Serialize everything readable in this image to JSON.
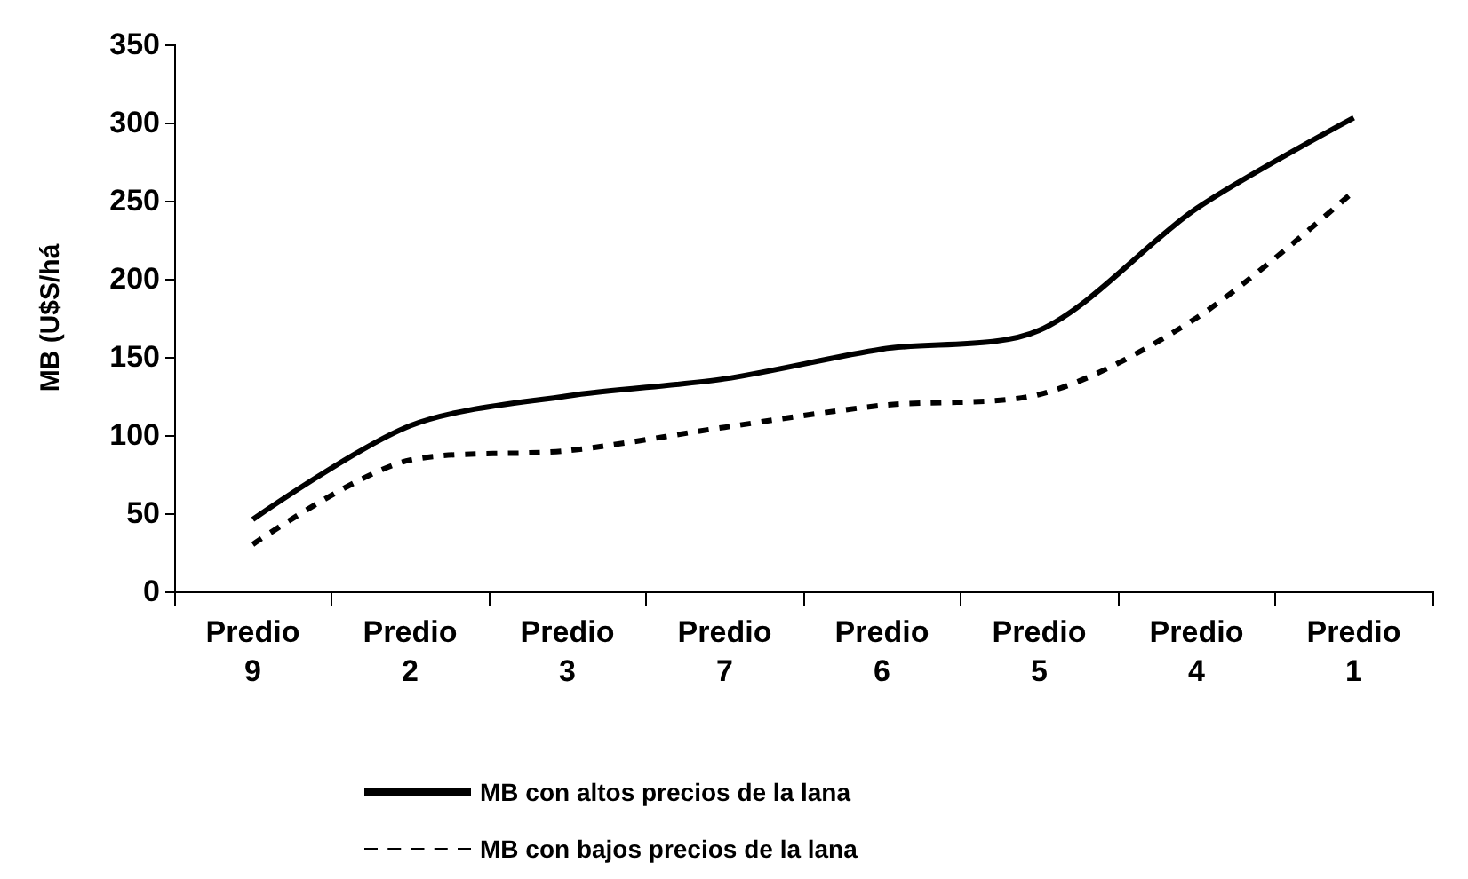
{
  "chart_data": {
    "type": "line",
    "ylabel": "MB (U$S/há",
    "categories": [
      "Predio\n9",
      "Predio\n2",
      "Predio\n3",
      "Predio\n7",
      "Predio\n6",
      "Predio\n5",
      "Predio\n4",
      "Predio\n1"
    ],
    "series": [
      {
        "name": "MB con altos precios de la lana",
        "color": "#000000",
        "line_style": "solid",
        "values": [
          46,
          106,
          125,
          136,
          155,
          167,
          245,
          303
        ]
      },
      {
        "name": "MB con bajos precios de la lana",
        "color": "#000000",
        "line_style": "dashed",
        "values": [
          30,
          84,
          90,
          105,
          119,
          126,
          175,
          256
        ]
      }
    ],
    "ylim": [
      0,
      350
    ],
    "yticks": [
      0,
      50,
      100,
      150,
      200,
      250,
      300,
      350
    ],
    "grid": false,
    "legend": "bottom",
    "marker": "none"
  }
}
